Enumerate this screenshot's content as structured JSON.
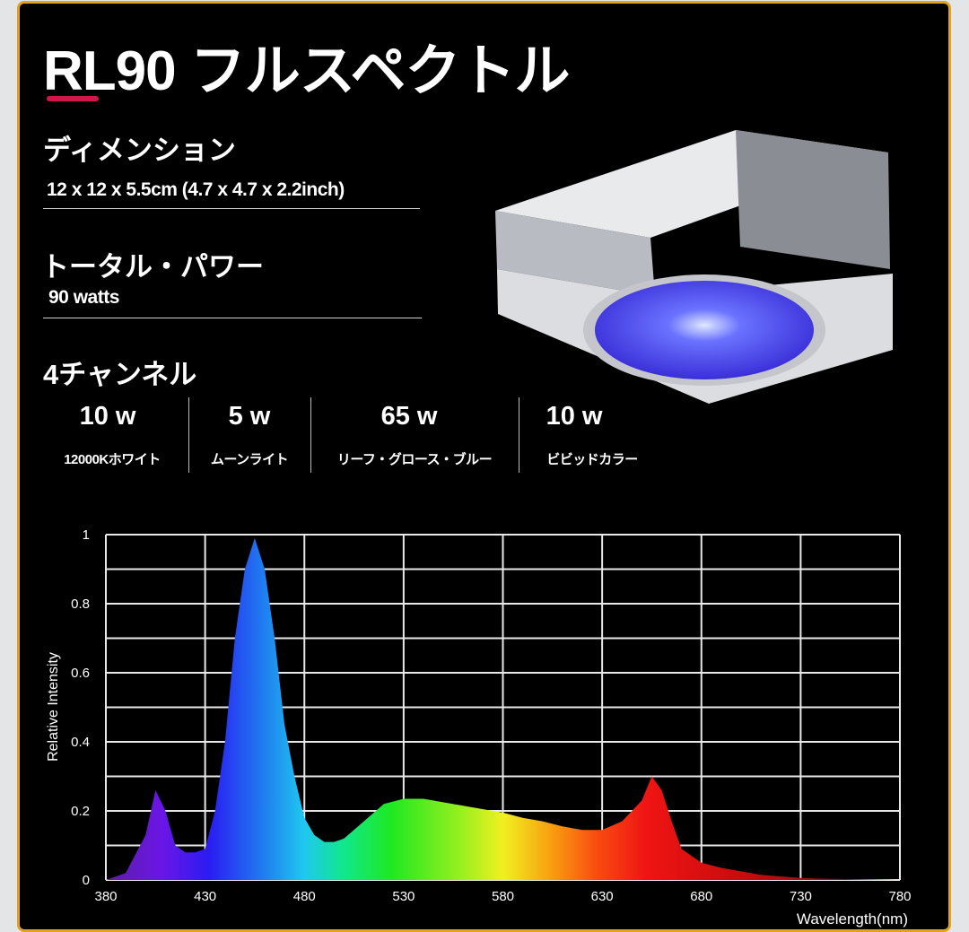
{
  "title": "RL90 フルスペクトル",
  "accent_color": "#d0174a",
  "frame_color": "#e2a11e",
  "dimension": {
    "label": "ディメンション",
    "value": "12 x 12 x 5.5cm (4.7 x 4.7 x 2.2inch)"
  },
  "power": {
    "label": "トータル・パワー",
    "value": "90 watts"
  },
  "channels": {
    "label": "4チャンネル",
    "items": [
      {
        "watts": "10 w",
        "name": "12000Kホワイト"
      },
      {
        "watts": "5 w",
        "name": "ムーンライト"
      },
      {
        "watts": "65 w",
        "name": "リーフ・グロース・ブルー"
      },
      {
        "watts": "10 w",
        "name": "ビビッドカラー"
      }
    ]
  },
  "chart_data": {
    "type": "area",
    "xlabel": "Wavelength(nm)",
    "ylabel": "Relative Intensity",
    "xlim": [
      380,
      780
    ],
    "ylim": [
      0,
      1
    ],
    "xticks": [
      "380",
      "430",
      "480",
      "530",
      "580",
      "630",
      "680",
      "730",
      "780"
    ],
    "yticks": [
      "0",
      "0.2",
      "0.4",
      "0.6",
      "0.8",
      "1"
    ],
    "grid": true,
    "fill": "spectral rainbow gradient by wavelength",
    "x": [
      380,
      390,
      400,
      405,
      410,
      415,
      420,
      425,
      430,
      435,
      440,
      445,
      450,
      455,
      460,
      465,
      470,
      475,
      480,
      485,
      490,
      495,
      500,
      510,
      520,
      530,
      540,
      550,
      560,
      570,
      580,
      590,
      600,
      610,
      620,
      630,
      640,
      650,
      655,
      660,
      665,
      670,
      680,
      690,
      700,
      710,
      720,
      730,
      740,
      760,
      780
    ],
    "y": [
      0,
      0.02,
      0.13,
      0.26,
      0.2,
      0.1,
      0.08,
      0.08,
      0.09,
      0.2,
      0.4,
      0.7,
      0.9,
      0.99,
      0.9,
      0.7,
      0.45,
      0.3,
      0.18,
      0.13,
      0.11,
      0.11,
      0.12,
      0.17,
      0.22,
      0.235,
      0.235,
      0.225,
      0.215,
      0.205,
      0.195,
      0.18,
      0.17,
      0.155,
      0.145,
      0.145,
      0.17,
      0.23,
      0.3,
      0.26,
      0.17,
      0.09,
      0.05,
      0.035,
      0.025,
      0.015,
      0.01,
      0.006,
      0.004,
      0.002,
      0
    ]
  }
}
